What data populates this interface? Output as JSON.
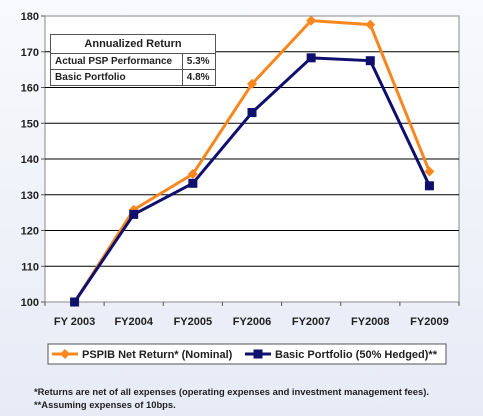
{
  "chart_data": {
    "type": "line",
    "categories": [
      "FY 2003",
      "FY2004",
      "FY2005",
      "FY2006",
      "FY2007",
      "FY2008",
      "FY2009"
    ],
    "series": [
      {
        "name": "PSPIB Net Return* (Nominal)",
        "color": "#f7871e",
        "marker": "diamond",
        "values": [
          100,
          125.8,
          135.8,
          161,
          178.7,
          177.6,
          136.5
        ]
      },
      {
        "name": "Basic Portfolio (50% Hedged)**",
        "color": "#0f0f6e",
        "marker": "square",
        "values": [
          100,
          124.5,
          133.2,
          153,
          168.3,
          167.5,
          132.5
        ]
      }
    ],
    "ylim": [
      100,
      180
    ],
    "yticks": [
      100,
      110,
      120,
      130,
      140,
      150,
      160,
      170,
      180
    ],
    "grid": true,
    "legend_position": "bottom"
  },
  "annualized_table": {
    "title": "Annualized Return",
    "rows": [
      {
        "label": "Actual PSP Performance",
        "value": "5.3%"
      },
      {
        "label": "Basic Portfolio",
        "value": "4.8%"
      }
    ]
  },
  "footnotes": [
    "*Returns are net of all expenses (operating expenses and investment management fees).",
    "**Assuming expenses of 10bps."
  ]
}
